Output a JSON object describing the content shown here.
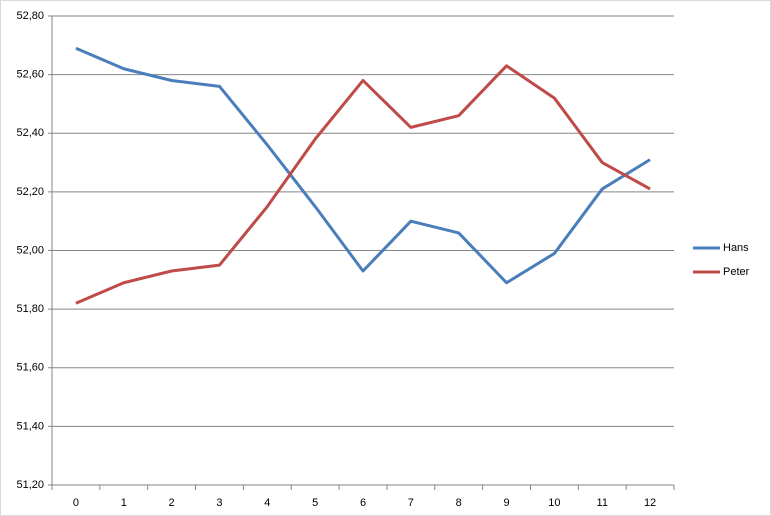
{
  "chart_data": {
    "type": "line",
    "categories": [
      "0",
      "1",
      "2",
      "3",
      "4",
      "5",
      "6",
      "7",
      "8",
      "9",
      "10",
      "11",
      "12"
    ],
    "series": [
      {
        "name": "Hans",
        "color": "#4a7ebb",
        "values": [
          52.69,
          52.62,
          52.58,
          52.56,
          52.36,
          52.15,
          51.93,
          52.1,
          52.06,
          51.89,
          51.99,
          52.21,
          52.31
        ]
      },
      {
        "name": "Peter",
        "color": "#be4b48",
        "values": [
          51.82,
          51.89,
          51.93,
          51.95,
          52.15,
          52.38,
          52.58,
          52.42,
          52.46,
          52.63,
          52.52,
          52.3,
          52.21
        ]
      }
    ],
    "ylim": [
      51.2,
      52.8
    ],
    "yticks": [
      {
        "value": 51.2,
        "label": "51,20"
      },
      {
        "value": 51.4,
        "label": "51,40"
      },
      {
        "value": 51.6,
        "label": "51,60"
      },
      {
        "value": 51.8,
        "label": "51,80"
      },
      {
        "value": 52.0,
        "label": "52,00"
      },
      {
        "value": 52.2,
        "label": "52,20"
      },
      {
        "value": 52.4,
        "label": "52,40"
      },
      {
        "value": 52.6,
        "label": "52,60"
      },
      {
        "value": 52.8,
        "label": "52,80"
      }
    ],
    "grid": true,
    "legend": "right"
  }
}
